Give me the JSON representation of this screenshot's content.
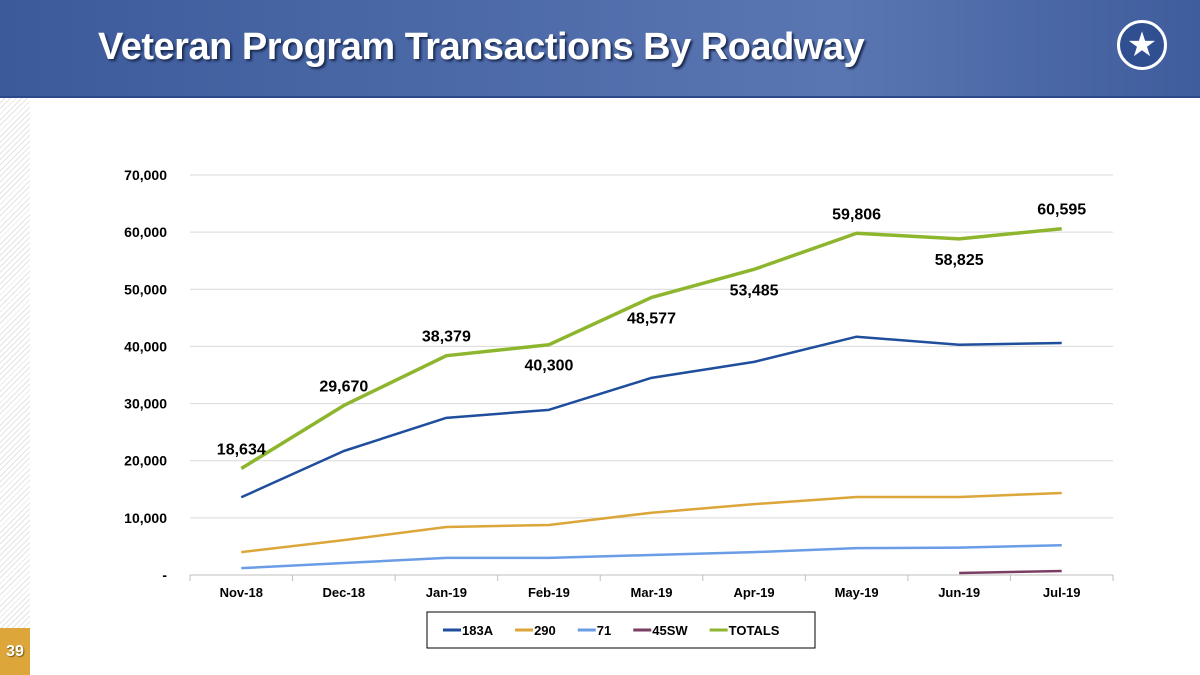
{
  "slide": {
    "title": "Veteran Program Transactions By Roadway",
    "page_number": "39",
    "logo_icon": "star-road-logo-icon"
  },
  "chart_data": {
    "type": "line",
    "title": "",
    "xlabel": "",
    "ylabel": "",
    "categories": [
      "Nov-18",
      "Dec-18",
      "Jan-19",
      "Feb-19",
      "Mar-19",
      "Apr-19",
      "May-19",
      "Jun-19",
      "Jul-19"
    ],
    "ylim": [
      0,
      70000
    ],
    "yticks": [
      0,
      10000,
      20000,
      30000,
      40000,
      50000,
      60000,
      70000
    ],
    "ytick_labels": [
      "-",
      "10,000",
      "20,000",
      "30,000",
      "40,000",
      "50,000",
      "60,000",
      "70,000"
    ],
    "grid": true,
    "legend": "bottom",
    "series": [
      {
        "name": "183A",
        "color": "#1f4e9c",
        "values": [
          13600,
          21700,
          27500,
          28900,
          34500,
          37300,
          41700,
          40300,
          40600
        ]
      },
      {
        "name": "290",
        "color": "#dca63a",
        "values": [
          4000,
          6100,
          8400,
          8750,
          10900,
          12400,
          13650,
          13650,
          14350
        ]
      },
      {
        "name": "71",
        "color": "#6a9de6",
        "values": [
          1200,
          2100,
          3000,
          3000,
          3500,
          4000,
          4700,
          4800,
          5200
        ]
      },
      {
        "name": "45SW",
        "color": "#7a3e63",
        "values": [
          null,
          null,
          null,
          null,
          null,
          null,
          null,
          350,
          700
        ]
      },
      {
        "name": "TOTALS",
        "color": "#8db62e",
        "values": [
          18634,
          29670,
          38379,
          40300,
          48577,
          53485,
          59806,
          58825,
          60595
        ],
        "data_labels": [
          "18,634",
          "29,670",
          "38,379",
          "40,300",
          "48,577",
          "53,485",
          "59,806",
          "58,825",
          "60,595"
        ]
      }
    ]
  }
}
